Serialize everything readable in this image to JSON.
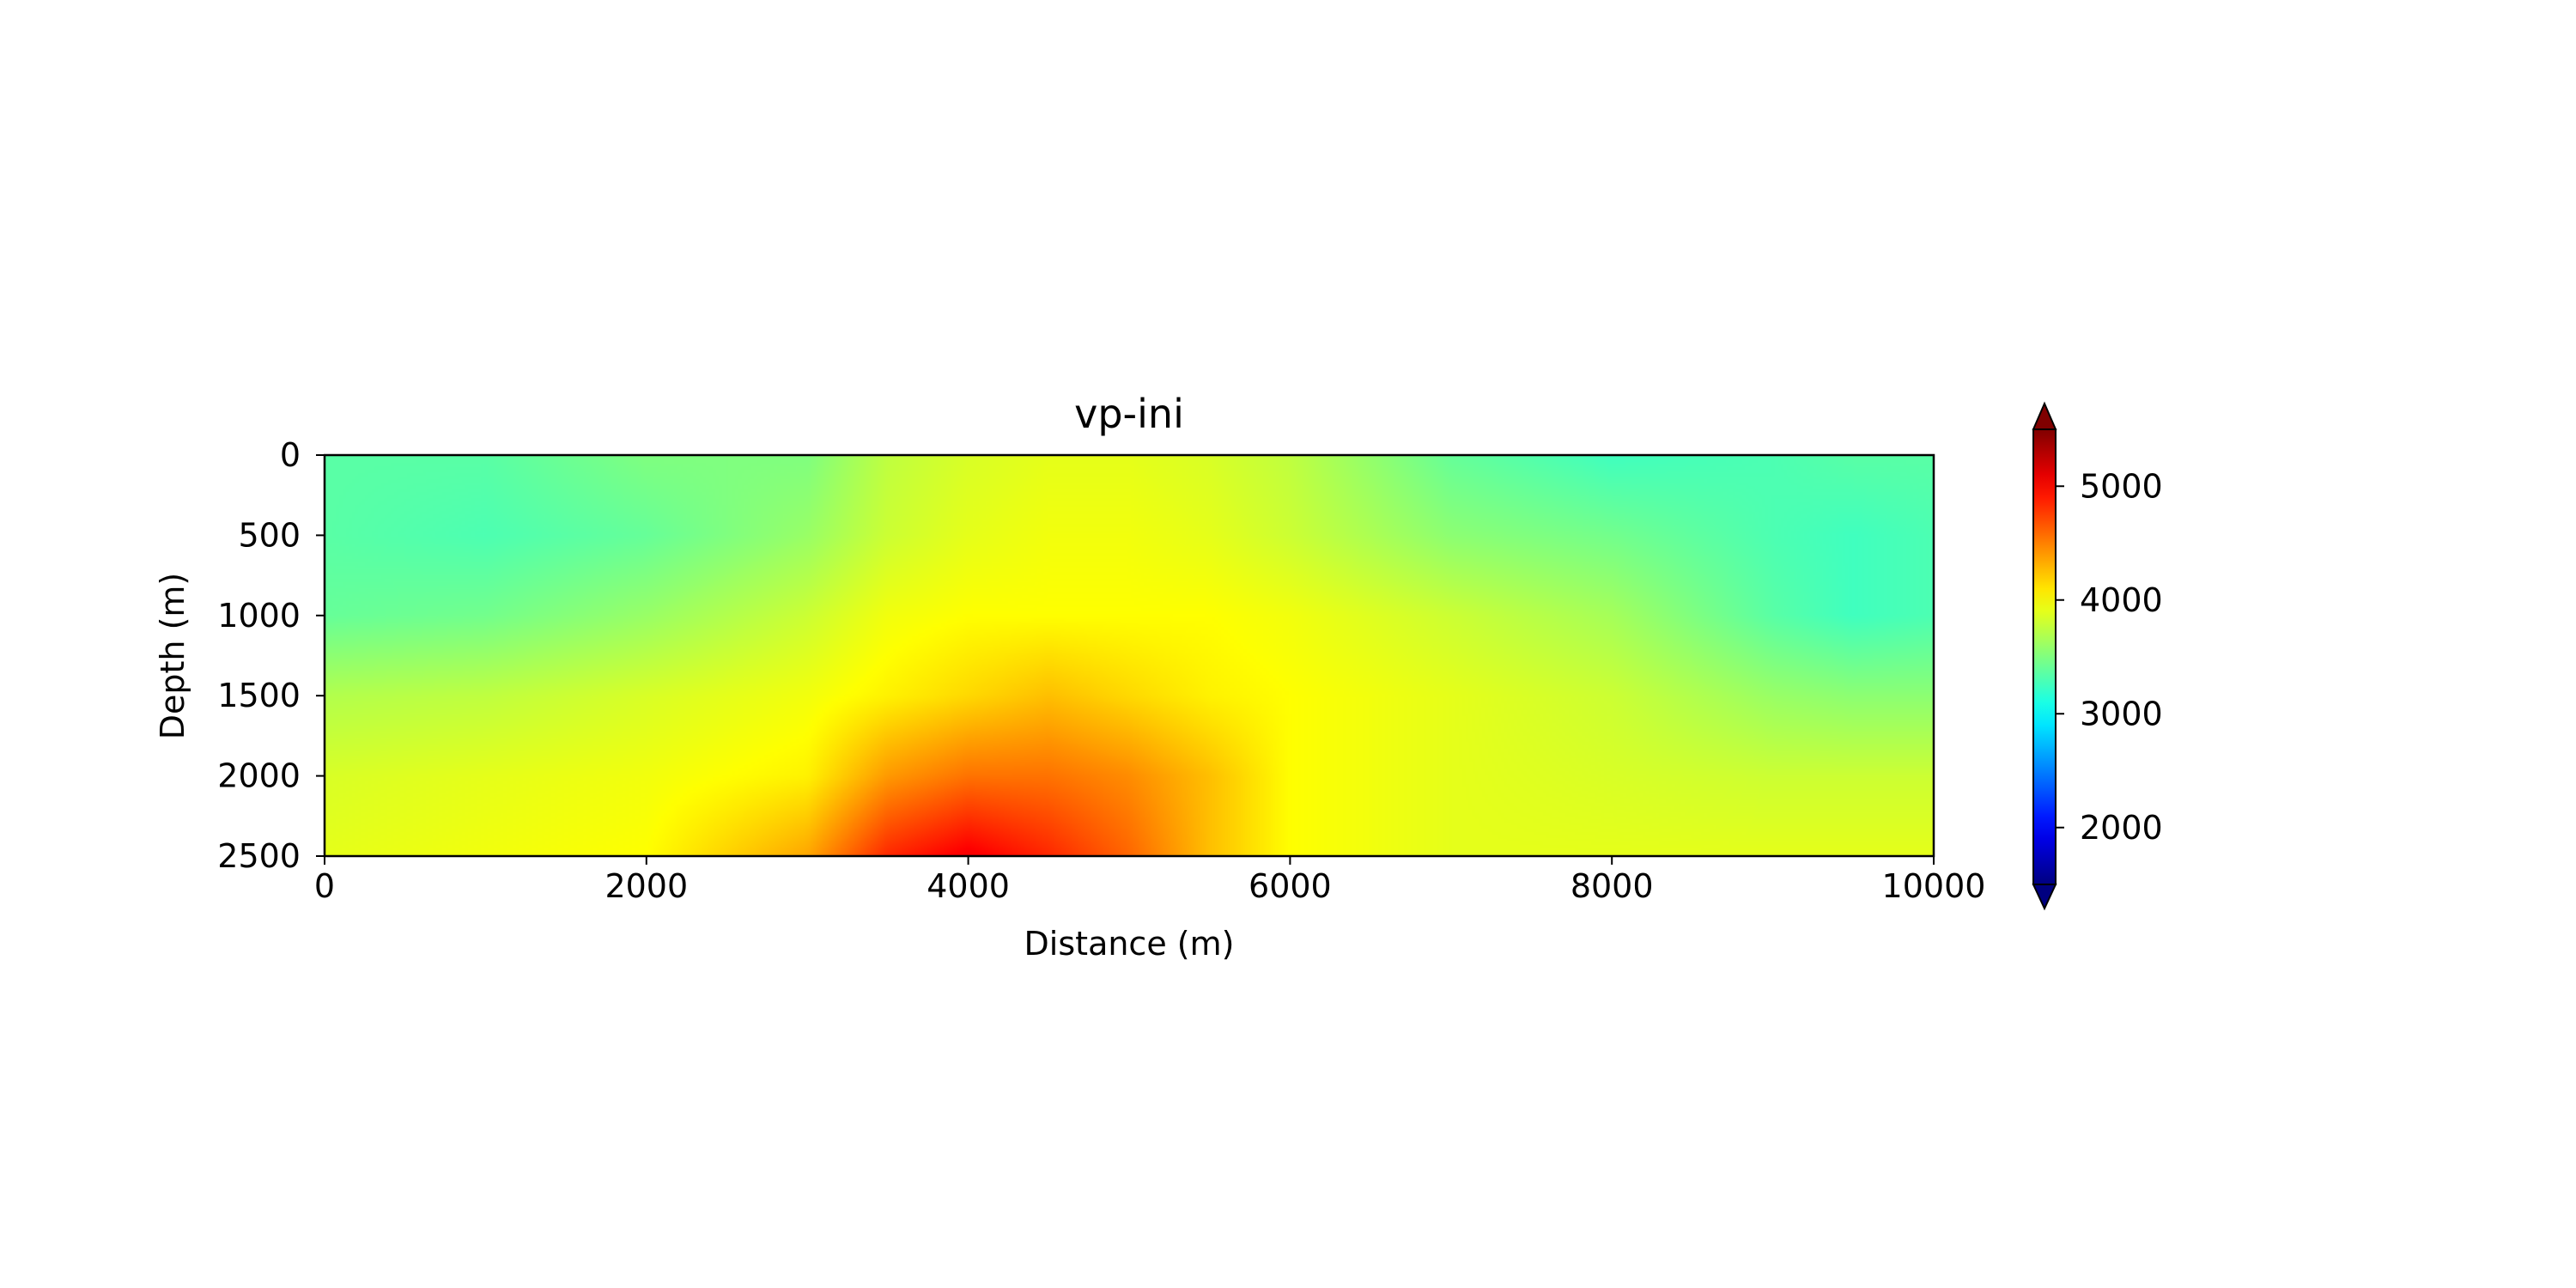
{
  "chart_data": {
    "type": "heatmap",
    "title": "vp-ini",
    "xlabel": "Distance (m)",
    "ylabel": "Depth (m)",
    "xlim": [
      0,
      10000
    ],
    "ylim": [
      2500,
      0
    ],
    "y_axis_inverted": true,
    "x_ticks": [
      0,
      2000,
      4000,
      6000,
      8000,
      10000
    ],
    "y_ticks": [
      0,
      500,
      1000,
      1500,
      2000,
      2500
    ],
    "colormap": "jet",
    "color_range": [
      1500,
      5500
    ],
    "colorbar_ticks": [
      2000,
      3000,
      4000,
      5000
    ],
    "colorbar_extend": "both",
    "grid": false,
    "field": {
      "x": [
        0,
        1000,
        2000,
        3000,
        3500,
        4000,
        4500,
        5000,
        5500,
        6000,
        7000,
        8000,
        9000,
        9500,
        10000
      ],
      "y": [
        0,
        500,
        1000,
        1500,
        2000,
        2500
      ],
      "values": [
        [
          3350,
          3350,
          3500,
          3500,
          3750,
          3850,
          3900,
          3900,
          3850,
          3750,
          3400,
          3250,
          3300,
          3350,
          3350
        ],
        [
          3350,
          3300,
          3400,
          3600,
          3800,
          3900,
          3950,
          3950,
          3900,
          3800,
          3550,
          3450,
          3300,
          3250,
          3300
        ],
        [
          3400,
          3450,
          3600,
          3800,
          3950,
          4000,
          4000,
          4000,
          4000,
          3950,
          3800,
          3650,
          3350,
          3250,
          3300
        ],
        [
          3700,
          3750,
          3850,
          3950,
          4050,
          4150,
          4250,
          4150,
          4050,
          4000,
          3900,
          3800,
          3600,
          3550,
          3550
        ],
        [
          3850,
          3900,
          3950,
          4050,
          4400,
          4550,
          4550,
          4450,
          4250,
          4000,
          3900,
          3850,
          3800,
          3800,
          3800
        ],
        [
          3900,
          3950,
          4000,
          4350,
          4850,
          5050,
          4850,
          4600,
          4250,
          4000,
          3900,
          3900,
          3900,
          3900,
          3900
        ]
      ]
    }
  }
}
